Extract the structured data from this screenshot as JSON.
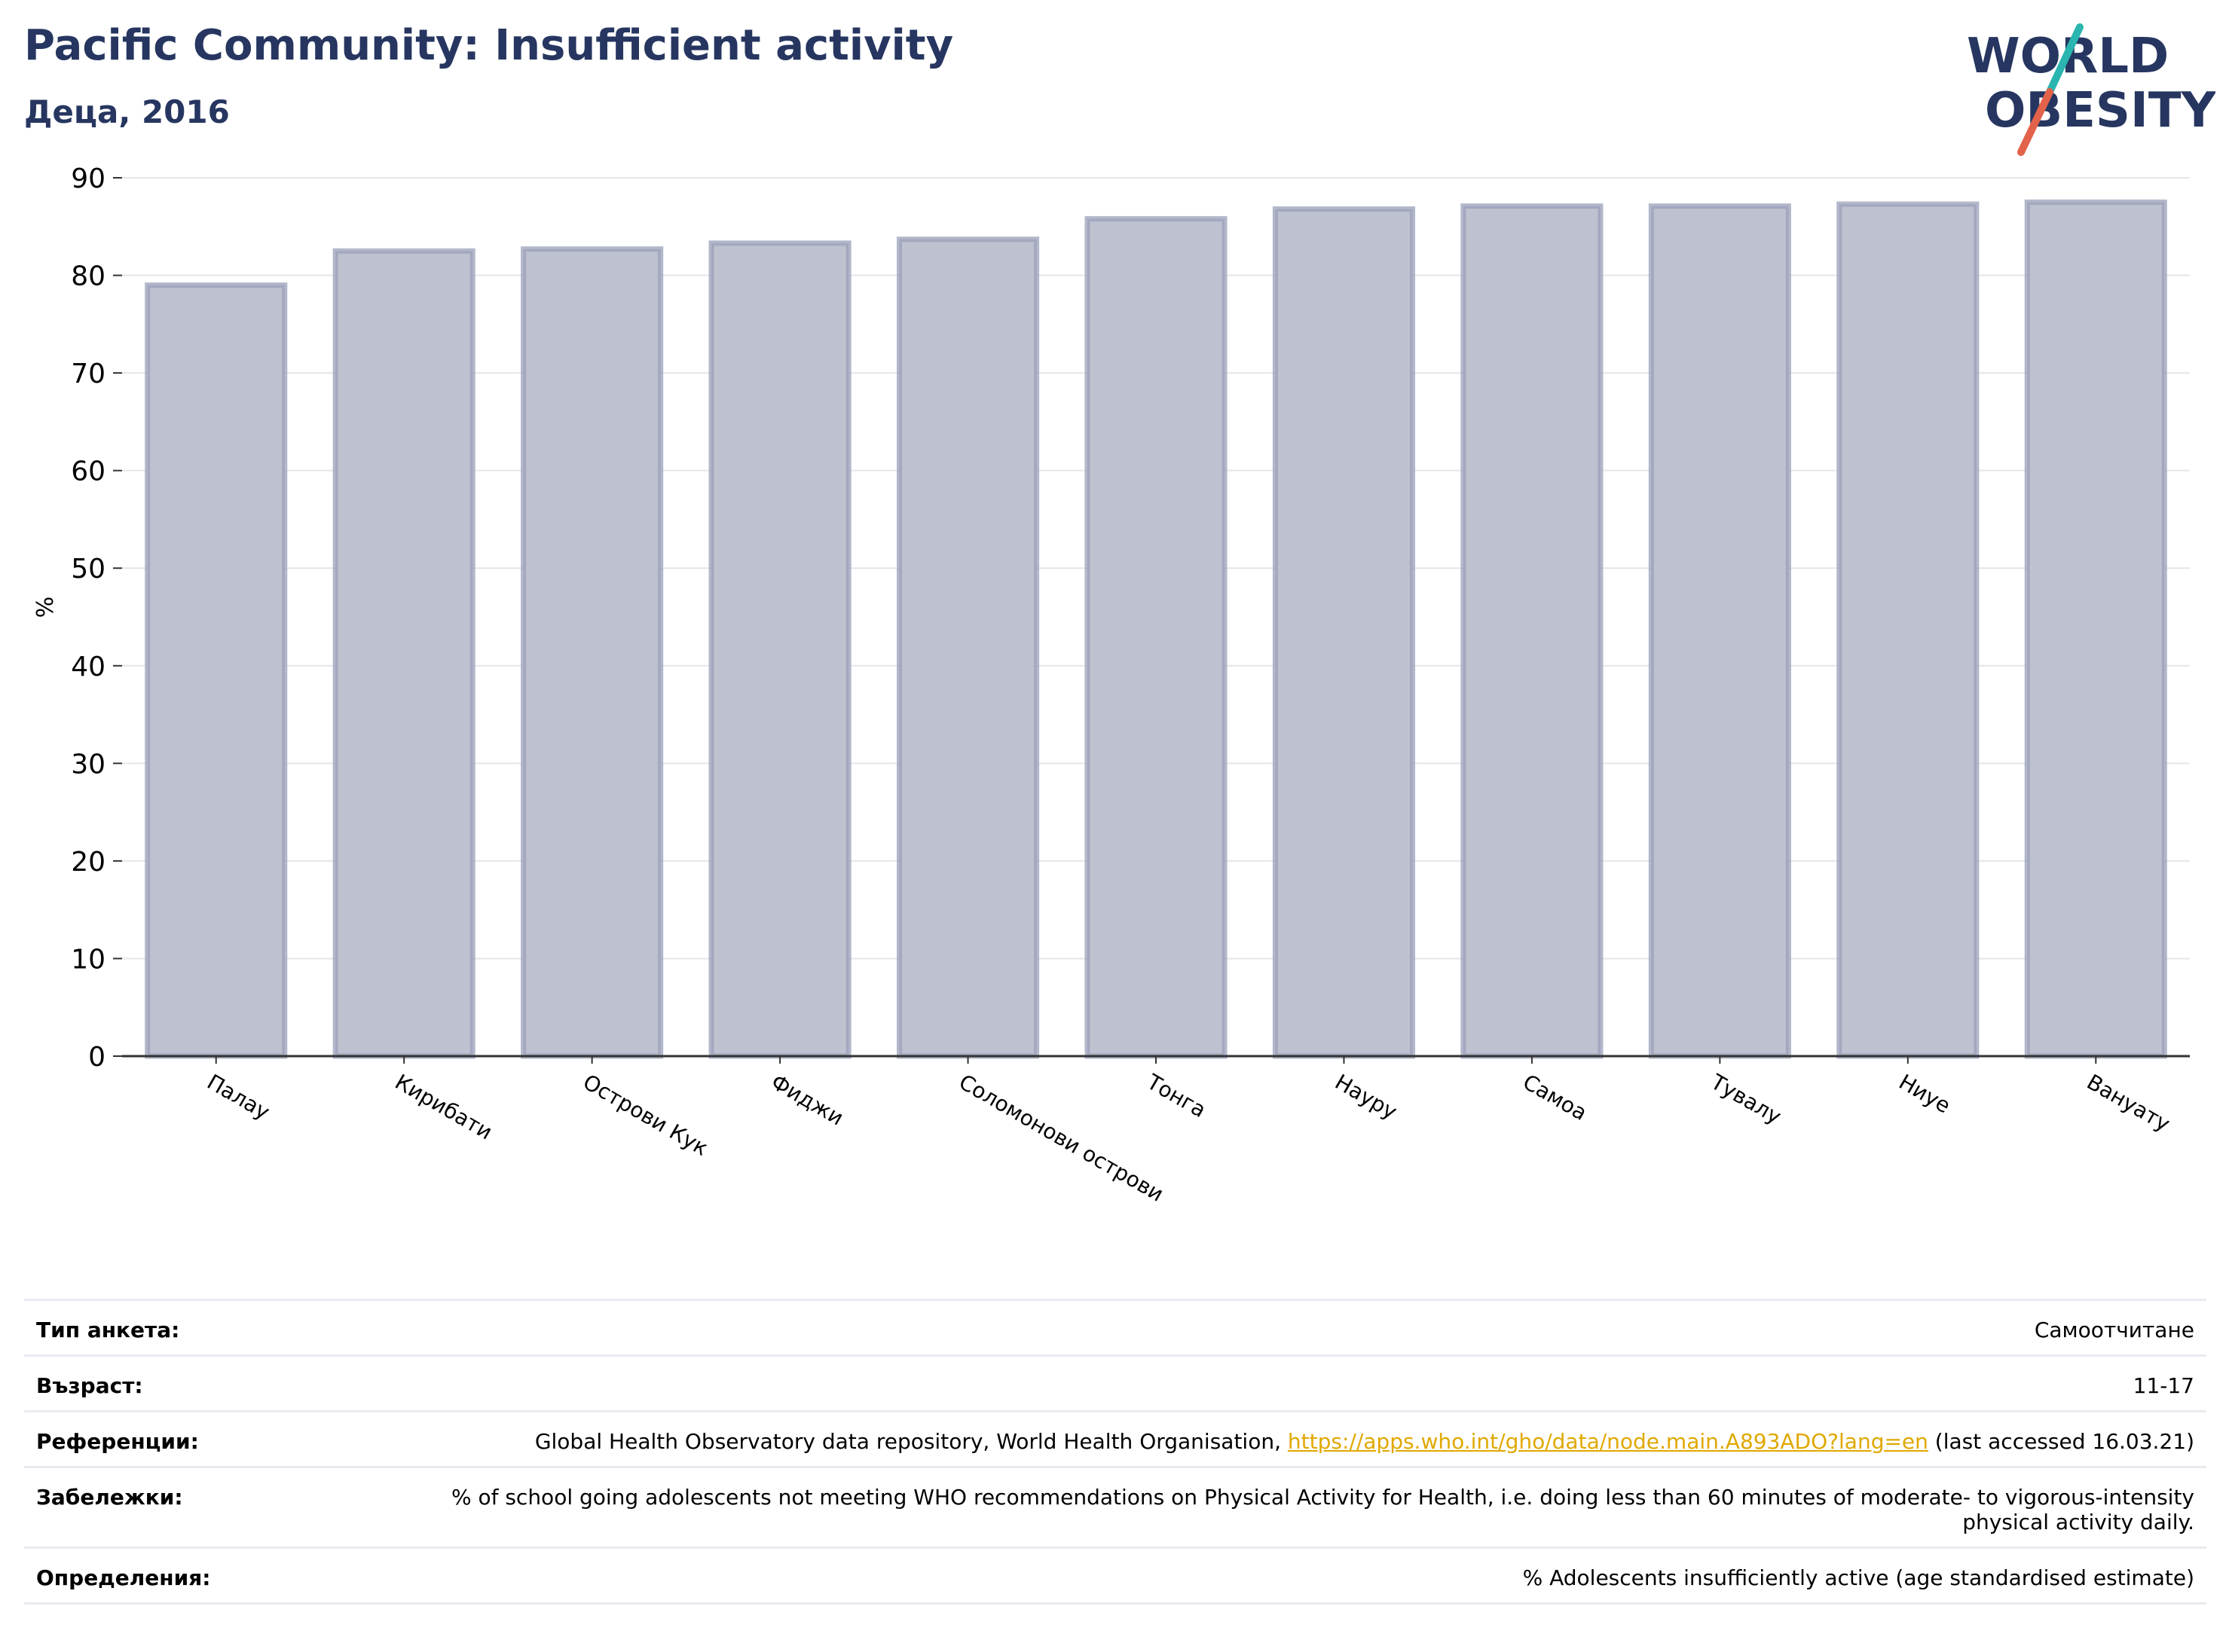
{
  "title": "Pacific Community: Insufficient activity",
  "subtitle": "Деца, 2016",
  "logo": {
    "line1": "WORLD",
    "line2": "OBESITY",
    "colors": {
      "text": "#263660",
      "slash_top": "#2bb5b0",
      "slash_bottom": "#e2624a"
    }
  },
  "chart_data": {
    "type": "bar",
    "title": "Pacific Community: Insufficient activity",
    "subtitle": "Деца, 2016",
    "xlabel": "",
    "ylabel": "%",
    "ylim": [
      0,
      90
    ],
    "yticks": [
      0,
      10,
      20,
      30,
      40,
      50,
      60,
      70,
      80,
      90
    ],
    "grid": true,
    "categories": [
      "Палау",
      "Кирибати",
      "Острови Кук",
      "Фиджи",
      "Соломонови острови",
      "Тонга",
      "Науру",
      "Самоа",
      "Тувалу",
      "Ниуе",
      "Вануату"
    ],
    "values": [
      79.0,
      82.5,
      82.7,
      83.3,
      83.7,
      85.8,
      86.8,
      87.1,
      87.1,
      87.3,
      87.5
    ],
    "colors": {
      "bar_fill": "#bec1cf",
      "bar_stroke": "#9a9fba",
      "axis": "#333333",
      "grid": "#e6e6ea"
    }
  },
  "info": {
    "survey_type": {
      "label": "Тип анкета:",
      "value": "Самоотчитане"
    },
    "age": {
      "label": "Възраст:",
      "value": "11-17"
    },
    "references": {
      "label": "Референции:",
      "text_before": "Global Health Observatory data repository, World Health Organisation, ",
      "link": "https://apps.who.int/gho/data/node.main.A893ADO?lang=en",
      "text_after": " (last accessed 16.03.21)"
    },
    "notes": {
      "label": "Забележки:",
      "value": "% of school going adolescents not meeting WHO recommendations on Physical Activity for Health, i.e. doing less than 60 minutes of moderate- to vigorous-intensity physical activity daily."
    },
    "definitions": {
      "label": "Определения:",
      "value": "% Adolescents insufficiently active (age standardised estimate)"
    }
  }
}
